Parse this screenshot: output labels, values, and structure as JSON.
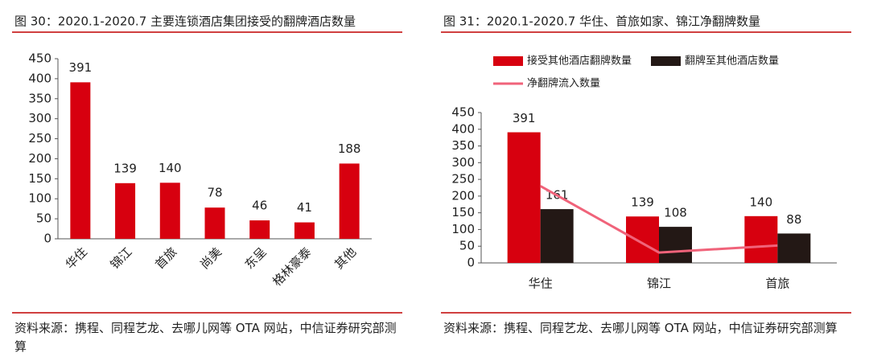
{
  "chart_data": [
    {
      "type": "bar",
      "title": "图 30：2020.1-2020.7 主要连锁酒店集团接受的翻牌酒店数量",
      "categories": [
        "华住",
        "锦江",
        "首旅",
        "尚美",
        "东呈",
        "格林豪泰",
        "其他"
      ],
      "values": [
        391,
        139,
        140,
        78,
        46,
        41,
        188
      ],
      "color": "#d7000f",
      "ylim": [
        0,
        450
      ],
      "yticks": [
        0,
        50,
        100,
        150,
        200,
        250,
        300,
        350,
        400,
        450
      ],
      "source": "资料来源：携程、同程艺龙、去哪儿网等 OTA 网站，中信证券研究部测算"
    },
    {
      "type": "bar",
      "title": "图 31：2020.1-2020.7 华住、首旅如家、锦江净翻牌数量",
      "categories": [
        "华住",
        "锦江",
        "首旅"
      ],
      "series": [
        {
          "name": "接受其他酒店翻牌数量",
          "color": "#d7000f",
          "values": [
            391,
            139,
            140
          ]
        },
        {
          "name": "翻牌至其他酒店数量",
          "color": "#231815",
          "values": [
            161,
            108,
            88
          ]
        },
        {
          "name": "净翻牌流入数量",
          "color": "#f0637a",
          "type": "line",
          "values": [
            230,
            31,
            52
          ]
        }
      ],
      "ylim": [
        0,
        450
      ],
      "yticks": [
        0,
        50,
        100,
        150,
        200,
        250,
        300,
        350,
        400,
        450
      ],
      "source": "资料来源：携程、同程艺龙、去哪儿网等 OTA 网站，中信证券研究部测算"
    }
  ]
}
